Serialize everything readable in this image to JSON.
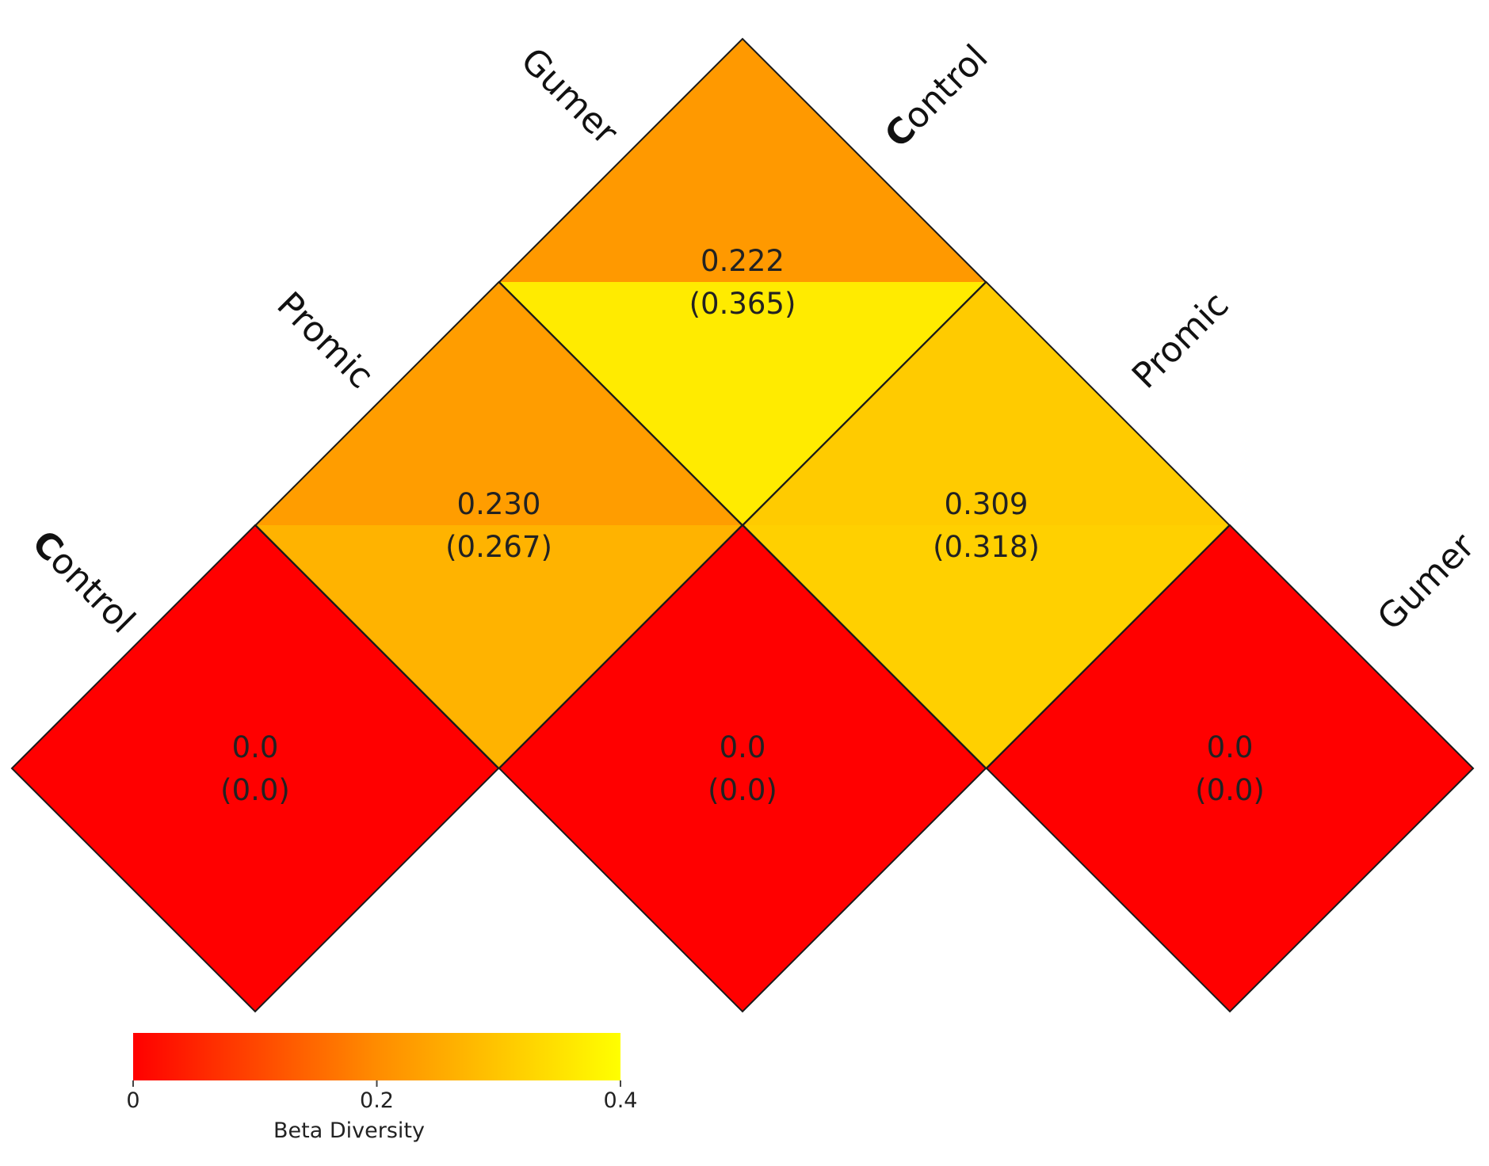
{
  "chart_data": {
    "type": "heatmap",
    "layout": "triangular-diamond",
    "groups": [
      "Control",
      "Promic",
      "Gumer"
    ],
    "cells": [
      {
        "row": "Control",
        "col": "Control",
        "value": 0.0,
        "value_label": "0.0",
        "alt_value": 0.0,
        "alt_label": "(0.0)"
      },
      {
        "row": "Promic",
        "col": "Promic",
        "value": 0.0,
        "value_label": "0.0",
        "alt_value": 0.0,
        "alt_label": "(0.0)"
      },
      {
        "row": "Gumer",
        "col": "Gumer",
        "value": 0.0,
        "value_label": "0.0",
        "alt_value": 0.0,
        "alt_label": "(0.0)"
      },
      {
        "row": "Control",
        "col": "Promic",
        "value": 0.23,
        "value_label": "0.230",
        "alt_value": 0.267,
        "alt_label": "(0.267)"
      },
      {
        "row": "Promic",
        "col": "Gumer",
        "value": 0.309,
        "value_label": "0.309",
        "alt_value": 0.318,
        "alt_label": "(0.318)"
      },
      {
        "row": "Control",
        "col": "Gumer",
        "value": 0.222,
        "value_label": "0.222",
        "alt_value": 0.365,
        "alt_label": "(0.365)"
      }
    ],
    "left_axis_labels": [
      {
        "first": "C",
        "rest": "ontrol"
      },
      {
        "first": "",
        "rest": "Promic"
      },
      {
        "first": "",
        "rest": "Gumer"
      }
    ],
    "right_axis_labels": [
      {
        "first": "C",
        "rest": "ontrol"
      },
      {
        "first": "",
        "rest": "Promic"
      },
      {
        "first": "",
        "rest": "Gumer"
      }
    ],
    "colorbar": {
      "title": "Beta Diversity",
      "range": [
        0,
        0.4
      ],
      "ticks": [
        {
          "value": 0,
          "label": "0"
        },
        {
          "value": 0.2,
          "label": "0.2"
        },
        {
          "value": 0.4,
          "label": "0.4"
        }
      ],
      "colors": [
        "#ff0000",
        "#ff8c00",
        "#ffff00"
      ]
    }
  }
}
